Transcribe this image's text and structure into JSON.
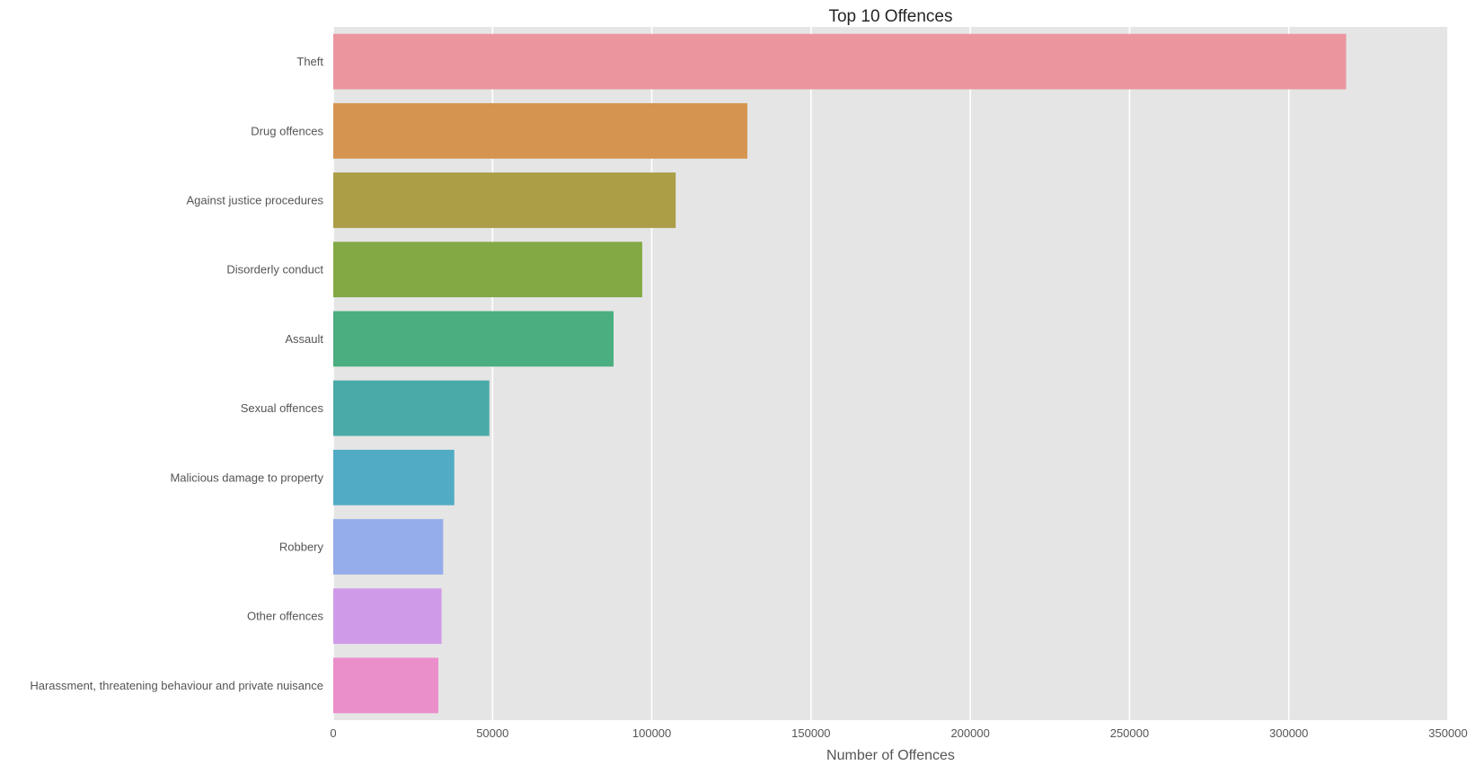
{
  "chart_data": {
    "type": "bar",
    "orientation": "horizontal",
    "title": "Top 10 Offences",
    "xlabel": "Number of Offences",
    "ylabel": "",
    "xlim": [
      0,
      350000
    ],
    "xticks": [
      0,
      50000,
      100000,
      150000,
      200000,
      250000,
      300000,
      350000
    ],
    "xtick_labels": [
      "0",
      "50000",
      "100000",
      "150000",
      "200000",
      "250000",
      "300000",
      "350000"
    ],
    "grid": true,
    "background_color": "#e5e5e5",
    "grid_color": "#ffffff",
    "categories": [
      "Theft",
      "Drug offences",
      "Against justice procedures",
      "Disorderly conduct",
      "Assault",
      "Sexual offences",
      "Malicious damage to property",
      "Robbery",
      "Other offences",
      "Harassment, threatening behaviour and private nuisance"
    ],
    "values": [
      318000,
      130000,
      107500,
      97000,
      88000,
      49000,
      38000,
      34500,
      34000,
      33000
    ],
    "colors": [
      "#eb969f",
      "#d5944f",
      "#ab9e46",
      "#83a944",
      "#4bae80",
      "#4aaaa7",
      "#51abc4",
      "#95adea",
      "#cf9be8",
      "#eb8fcb"
    ]
  }
}
